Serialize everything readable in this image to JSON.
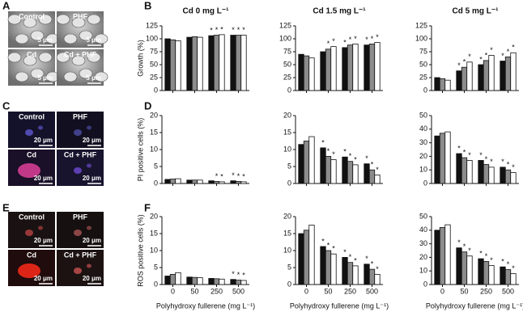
{
  "figure": {
    "letters": [
      "A",
      "B",
      "C",
      "D",
      "E",
      "F"
    ]
  },
  "images": {
    "A": [
      {
        "label": "Control",
        "scale": "5 μm"
      },
      {
        "label": "PHF",
        "scale": "5 μm"
      },
      {
        "label": "Cd",
        "scale": "5 μm"
      },
      {
        "label": "Cd + PHF",
        "scale": "5 μm"
      }
    ],
    "C": [
      {
        "label": "Control",
        "scale": "20 μm"
      },
      {
        "label": "PHF",
        "scale": "20 μm"
      },
      {
        "label": "Cd",
        "scale": "20 μm"
      },
      {
        "label": "Cd + PHF",
        "scale": "20 μm"
      }
    ],
    "E": [
      {
        "label": "Control",
        "scale": "20 μm"
      },
      {
        "label": "PHF",
        "scale": "20 μm"
      },
      {
        "label": "Cd",
        "scale": "20 μm"
      },
      {
        "label": "Cd + PHF",
        "scale": "20 μm"
      }
    ]
  },
  "chart_data": [
    {
      "type": "bar",
      "title": "Cd 0 mg L⁻¹",
      "ylabel": "Growth (%)",
      "categories": [
        null,
        null,
        null,
        null
      ],
      "ylim": [
        0,
        125
      ],
      "yticks": [
        0,
        25,
        50,
        75,
        100,
        125
      ],
      "series": [
        {
          "color": "#111111",
          "values": [
            100,
            103,
            106,
            107
          ],
          "significance": [
            null,
            null,
            "*",
            "*"
          ]
        },
        {
          "color": "#8c8c8c",
          "values": [
            98,
            104,
            107,
            107
          ],
          "significance": [
            null,
            null,
            "*",
            "*"
          ]
        },
        {
          "color": "#ffffff",
          "values": [
            96,
            103,
            108,
            107
          ],
          "significance": [
            null,
            null,
            "*",
            "*"
          ]
        }
      ]
    },
    {
      "type": "bar",
      "title": "Cd 1.5 mg L⁻¹",
      "categories": [
        null,
        null,
        null,
        null
      ],
      "ylim": [
        0,
        125
      ],
      "yticks": [
        0,
        25,
        50,
        75,
        100,
        125
      ],
      "series": [
        {
          "color": "#111111",
          "values": [
            70,
            75,
            83,
            88
          ],
          "significance": [
            null,
            null,
            "*",
            "*"
          ]
        },
        {
          "color": "#8c8c8c",
          "values": [
            67,
            80,
            88,
            90
          ],
          "significance": [
            null,
            "*",
            "*",
            "*"
          ]
        },
        {
          "color": "#ffffff",
          "values": [
            63,
            85,
            90,
            93
          ],
          "significance": [
            null,
            "*",
            "*",
            "*"
          ]
        }
      ]
    },
    {
      "type": "bar",
      "title": "Cd 5 mg L⁻¹",
      "categories": [
        null,
        null,
        null,
        null
      ],
      "ylim": [
        0,
        125
      ],
      "yticks": [
        0,
        25,
        50,
        75,
        100,
        125
      ],
      "series": [
        {
          "color": "#111111",
          "values": [
            25,
            38,
            50,
            57
          ],
          "significance": [
            null,
            "*",
            "*",
            "*"
          ]
        },
        {
          "color": "#8c8c8c",
          "values": [
            23,
            45,
            58,
            65
          ],
          "significance": [
            null,
            "*",
            "*",
            "*"
          ]
        },
        {
          "color": "#ffffff",
          "values": [
            20,
            55,
            68,
            73
          ],
          "significance": [
            null,
            "*",
            "*",
            "*"
          ]
        }
      ]
    },
    {
      "type": "bar",
      "ylabel": "PI positive cells (%)",
      "categories": [
        null,
        null,
        null,
        null
      ],
      "ylim": [
        0,
        20
      ],
      "yticks": [
        0,
        5,
        10,
        15,
        20
      ],
      "series": [
        {
          "color": "#111111",
          "values": [
            1.2,
            1.0,
            0.8,
            0.8
          ],
          "significance": [
            null,
            null,
            null,
            "*"
          ]
        },
        {
          "color": "#8c8c8c",
          "values": [
            1.3,
            1.0,
            0.6,
            0.6
          ],
          "significance": [
            null,
            null,
            "*",
            "*"
          ]
        },
        {
          "color": "#ffffff",
          "values": [
            1.4,
            1.0,
            0.5,
            0.5
          ],
          "significance": [
            null,
            null,
            "*",
            "*"
          ]
        }
      ]
    },
    {
      "type": "bar",
      "categories": [
        null,
        null,
        null,
        null
      ],
      "ylim": [
        0,
        20
      ],
      "yticks": [
        0,
        5,
        10,
        15,
        20
      ],
      "series": [
        {
          "color": "#111111",
          "values": [
            11.5,
            10.5,
            7.8,
            5.8
          ],
          "significance": [
            null,
            "*",
            "*",
            "*"
          ]
        },
        {
          "color": "#8c8c8c",
          "values": [
            12.5,
            8,
            6.5,
            4
          ],
          "significance": [
            null,
            "*",
            "*",
            "*"
          ]
        },
        {
          "color": "#ffffff",
          "values": [
            13.8,
            7,
            5.5,
            2.5
          ],
          "significance": [
            null,
            "*",
            "*",
            "*"
          ]
        }
      ]
    },
    {
      "type": "bar",
      "categories": [
        null,
        null,
        null,
        null
      ],
      "ylim": [
        0,
        50
      ],
      "yticks": [
        0,
        10,
        20,
        30,
        40,
        50
      ],
      "series": [
        {
          "color": "#111111",
          "values": [
            35,
            22,
            17,
            12
          ],
          "significance": [
            null,
            "*",
            "*",
            "*"
          ]
        },
        {
          "color": "#8c8c8c",
          "values": [
            37,
            19,
            14,
            10
          ],
          "significance": [
            null,
            "*",
            "*",
            "*"
          ]
        },
        {
          "color": "#ffffff",
          "values": [
            38,
            17,
            12,
            8
          ],
          "significance": [
            null,
            "*",
            "*",
            "*"
          ]
        }
      ]
    },
    {
      "type": "bar",
      "ylabel": "ROS positive cells (%)",
      "xlabel": "Polyhydroxy fullerene (mg L⁻¹)",
      "categories": [
        "0",
        "50",
        "250",
        "500"
      ],
      "ylim": [
        0,
        20
      ],
      "yticks": [
        0,
        5,
        10,
        15,
        20
      ],
      "series": [
        {
          "color": "#111111",
          "values": [
            2.5,
            2.2,
            1.8,
            1.5
          ],
          "significance": [
            null,
            null,
            null,
            "*"
          ]
        },
        {
          "color": "#8c8c8c",
          "values": [
            3,
            2.1,
            1.7,
            1.3
          ],
          "significance": [
            null,
            null,
            null,
            "*"
          ]
        },
        {
          "color": "#ffffff",
          "values": [
            3.5,
            2,
            1.6,
            1.2
          ],
          "significance": [
            null,
            null,
            null,
            "*"
          ]
        }
      ]
    },
    {
      "type": "bar",
      "xlabel": "Polyhydroxy fullerene (mg L⁻¹)",
      "categories": [
        "0",
        "50",
        "250",
        "500"
      ],
      "ylim": [
        0,
        20
      ],
      "yticks": [
        0,
        5,
        10,
        15,
        20
      ],
      "series": [
        {
          "color": "#111111",
          "values": [
            15,
            11.2,
            8,
            6
          ],
          "significance": [
            null,
            "*",
            "*",
            "*"
          ]
        },
        {
          "color": "#8c8c8c",
          "values": [
            16,
            10,
            6.5,
            4.5
          ],
          "significance": [
            null,
            "*",
            "*",
            "*"
          ]
        },
        {
          "color": "#ffffff",
          "values": [
            17.5,
            9,
            5.5,
            3
          ],
          "significance": [
            null,
            "*",
            "*",
            "*"
          ]
        }
      ]
    },
    {
      "type": "bar",
      "xlabel": "Polyhydroxy fullerene (mg L⁻¹)",
      "categories": [
        "0",
        "50",
        "250",
        "500"
      ],
      "ylim": [
        0,
        50
      ],
      "yticks": [
        0,
        10,
        20,
        30,
        40,
        50
      ],
      "series": [
        {
          "color": "#111111",
          "values": [
            40,
            27,
            19,
            13
          ],
          "significance": [
            null,
            "*",
            "*",
            "*"
          ]
        },
        {
          "color": "#8c8c8c",
          "values": [
            42,
            24,
            17,
            11
          ],
          "significance": [
            null,
            "*",
            "*",
            "*"
          ]
        },
        {
          "color": "#ffffff",
          "values": [
            44,
            21,
            14,
            8
          ],
          "significance": [
            null,
            "*",
            "*",
            "*"
          ]
        }
      ]
    }
  ]
}
